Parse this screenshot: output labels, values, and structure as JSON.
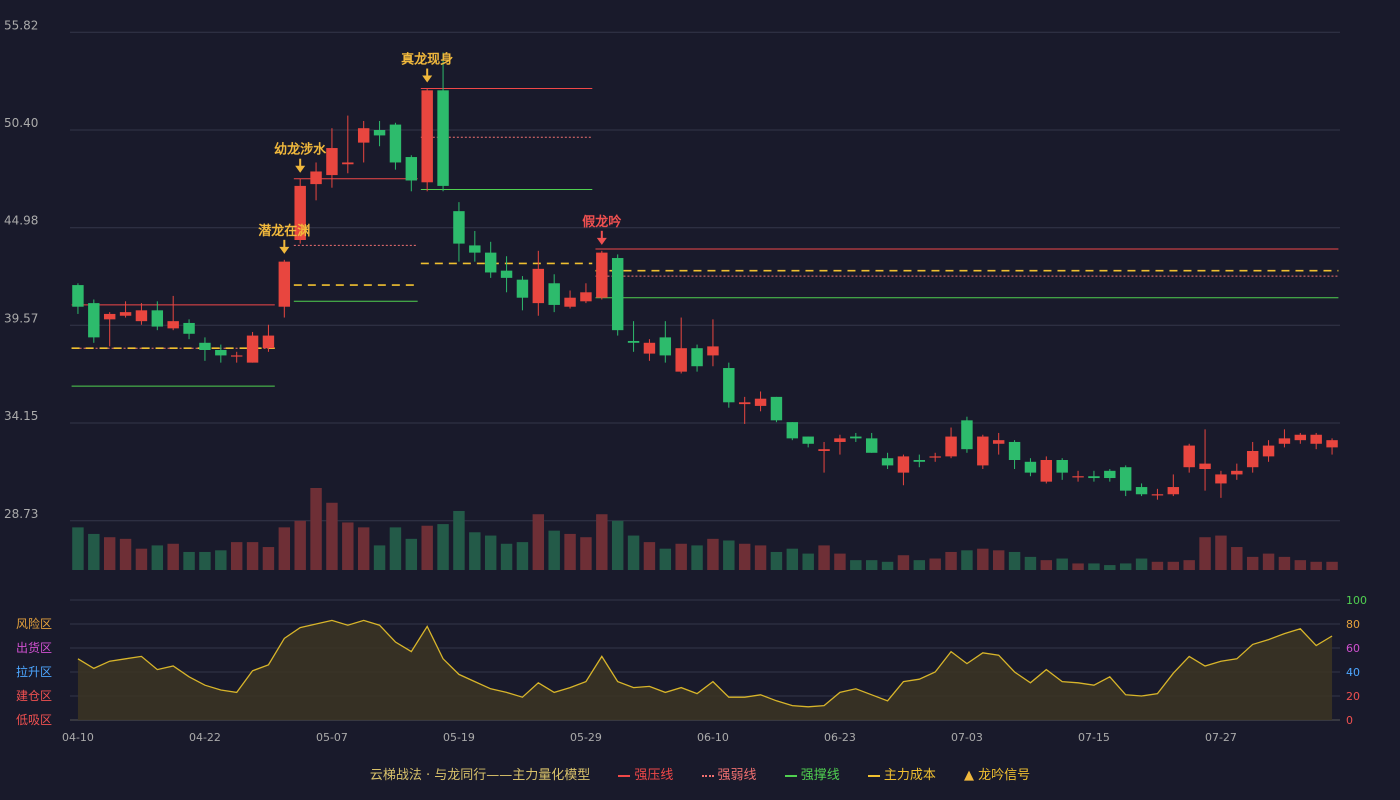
{
  "chart_data": {
    "type": "candlestick",
    "price_axis": {
      "ticks": [
        28.73,
        34.15,
        39.57,
        44.98,
        50.4,
        55.82
      ],
      "min": 26.0,
      "max": 56.5
    },
    "x_labels": [
      {
        "index": 0,
        "label": "04-10"
      },
      {
        "index": 8,
        "label": "04-22"
      },
      {
        "index": 16,
        "label": "05-07"
      },
      {
        "index": 24,
        "label": "05-19"
      },
      {
        "index": 32,
        "label": "05-29"
      },
      {
        "index": 40,
        "label": "06-10"
      },
      {
        "index": 48,
        "label": "06-23"
      },
      {
        "index": 56,
        "label": "07-03"
      },
      {
        "index": 64,
        "label": "07-15"
      },
      {
        "index": 72,
        "label": "07-27"
      }
    ],
    "candles": [
      [
        41.8,
        40.6,
        41.9,
        40.2
      ],
      [
        40.8,
        38.9,
        41.0,
        38.6
      ],
      [
        39.9,
        40.2,
        40.3,
        38.4
      ],
      [
        40.1,
        40.3,
        40.9,
        40.0
      ],
      [
        39.8,
        40.4,
        40.8,
        39.6
      ],
      [
        40.4,
        39.5,
        40.9,
        39.3
      ],
      [
        39.4,
        39.8,
        41.2,
        39.3
      ],
      [
        39.7,
        39.1,
        39.9,
        38.8
      ],
      [
        38.6,
        38.2,
        38.9,
        37.6
      ],
      [
        38.2,
        37.9,
        38.5,
        37.5
      ],
      [
        37.9,
        37.9,
        38.1,
        37.5
      ],
      [
        37.5,
        39.0,
        39.2,
        37.5
      ],
      [
        38.3,
        39.0,
        39.6,
        38.1
      ],
      [
        40.6,
        43.1,
        43.2,
        40.0
      ],
      [
        44.3,
        47.3,
        47.7,
        44.1
      ],
      [
        47.4,
        48.1,
        48.6,
        46.5
      ],
      [
        47.9,
        49.4,
        50.5,
        47.2
      ],
      [
        48.5,
        48.6,
        51.2,
        48.0
      ],
      [
        49.7,
        50.5,
        50.9,
        48.6
      ],
      [
        50.4,
        50.1,
        50.9,
        49.5
      ],
      [
        50.7,
        48.6,
        50.8,
        48.2
      ],
      [
        48.9,
        47.6,
        49.0,
        47.0
      ],
      [
        47.5,
        52.6,
        52.7,
        47.0
      ],
      [
        52.6,
        47.3,
        54.7,
        47.0
      ],
      [
        45.9,
        44.1,
        46.4,
        43.1
      ],
      [
        44.0,
        43.6,
        44.8,
        43.1
      ],
      [
        43.6,
        42.5,
        44.2,
        42.2
      ],
      [
        42.6,
        42.2,
        43.4,
        41.4
      ],
      [
        42.1,
        41.1,
        42.3,
        40.4
      ],
      [
        40.8,
        42.7,
        43.7,
        40.1
      ],
      [
        41.9,
        40.7,
        42.4,
        40.3
      ],
      [
        40.6,
        41.1,
        41.5,
        40.5
      ],
      [
        40.9,
        41.4,
        41.9,
        40.8
      ],
      [
        41.1,
        43.6,
        43.7,
        41.0
      ],
      [
        43.3,
        39.3,
        43.5,
        39.0
      ],
      [
        38.7,
        38.6,
        39.8,
        38.1
      ],
      [
        38.0,
        38.6,
        38.8,
        37.6
      ],
      [
        38.9,
        37.9,
        39.8,
        37.5
      ],
      [
        37.0,
        38.3,
        40.0,
        36.9
      ],
      [
        38.3,
        37.3,
        38.5,
        37.0
      ],
      [
        37.9,
        38.4,
        39.9,
        37.3
      ],
      [
        37.2,
        35.3,
        37.5,
        35.0
      ],
      [
        35.2,
        35.3,
        35.6,
        34.1
      ],
      [
        35.1,
        35.5,
        35.9,
        34.8
      ],
      [
        35.6,
        34.3,
        35.6,
        34.2
      ],
      [
        34.2,
        33.3,
        34.2,
        33.2
      ],
      [
        33.4,
        33.0,
        33.4,
        32.8
      ],
      [
        32.6,
        32.7,
        33.1,
        31.4
      ],
      [
        33.1,
        33.3,
        33.5,
        32.4
      ],
      [
        33.4,
        33.3,
        33.6,
        33.1
      ],
      [
        33.3,
        32.5,
        33.6,
        32.5
      ],
      [
        32.2,
        31.8,
        32.5,
        31.6
      ],
      [
        31.4,
        32.3,
        32.4,
        30.7
      ],
      [
        32.1,
        32.0,
        32.4,
        31.7
      ],
      [
        32.3,
        32.3,
        32.5,
        32.0
      ],
      [
        32.3,
        33.4,
        33.9,
        32.2
      ],
      [
        34.3,
        32.7,
        34.5,
        32.5
      ],
      [
        31.8,
        33.4,
        33.5,
        31.6
      ],
      [
        33.0,
        33.2,
        33.6,
        32.4
      ],
      [
        33.1,
        32.1,
        33.2,
        31.6
      ],
      [
        32.0,
        31.4,
        32.2,
        31.2
      ],
      [
        30.9,
        32.1,
        32.3,
        30.8
      ],
      [
        32.1,
        31.4,
        32.2,
        31.0
      ],
      [
        31.2,
        31.2,
        31.5,
        30.9
      ],
      [
        31.2,
        31.1,
        31.5,
        30.9
      ],
      [
        31.5,
        31.1,
        31.6,
        30.9
      ],
      [
        31.7,
        30.4,
        31.8,
        30.1
      ],
      [
        30.6,
        30.2,
        30.8,
        30.1
      ],
      [
        30.2,
        30.2,
        30.5,
        29.9
      ],
      [
        30.2,
        30.6,
        31.3,
        30.1
      ],
      [
        31.7,
        32.9,
        33.0,
        31.4
      ],
      [
        31.6,
        31.9,
        33.8,
        30.4
      ],
      [
        30.8,
        31.3,
        31.5,
        30.0
      ],
      [
        31.3,
        31.5,
        31.9,
        31.0
      ],
      [
        31.7,
        32.6,
        33.1,
        31.4
      ],
      [
        32.3,
        32.9,
        33.2,
        32.0
      ],
      [
        33.0,
        33.3,
        33.8,
        32.8
      ],
      [
        33.2,
        33.5,
        33.6,
        33.0
      ],
      [
        33.0,
        33.5,
        33.6,
        32.7
      ],
      [
        32.8,
        33.2,
        33.3,
        32.4
      ]
    ],
    "volume": [
      26,
      22,
      20,
      19,
      13,
      15,
      16,
      11,
      11,
      12,
      17,
      17,
      14,
      26,
      30,
      50,
      41,
      29,
      26,
      15,
      26,
      19,
      27,
      28,
      36,
      23,
      21,
      16,
      17,
      34,
      24,
      22,
      20,
      34,
      30,
      21,
      17,
      13,
      16,
      15,
      19,
      18,
      16,
      15,
      11,
      13,
      10,
      15,
      10,
      6,
      6,
      5,
      9,
      6,
      7,
      11,
      12,
      13,
      12,
      11,
      8,
      6,
      7,
      4,
      4,
      3,
      4,
      7,
      5,
      5,
      6,
      20,
      21,
      14,
      8,
      10,
      8,
      6,
      5,
      5
    ],
    "volume_max": 50,
    "oscillator": {
      "zones": [
        "风险区",
        "出货区",
        "拉升区",
        "建仓区",
        "低吸区"
      ],
      "right_ticks": [
        "100",
        "80",
        "60",
        "40",
        "20",
        "0"
      ],
      "values": [
        51,
        43,
        49,
        51,
        53,
        42,
        45,
        36,
        29,
        25,
        23,
        41,
        46,
        68,
        77,
        80,
        83,
        79,
        83,
        79,
        65,
        57,
        78,
        51,
        38,
        32,
        26,
        23,
        19,
        31,
        23,
        27,
        32,
        53,
        32,
        27,
        28,
        23,
        27,
        22,
        32,
        19,
        19,
        21,
        16,
        12,
        11,
        12,
        23,
        26,
        21,
        16,
        32,
        34,
        40,
        57,
        47,
        56,
        54,
        40,
        31,
        42,
        32,
        31,
        29,
        36,
        21,
        20,
        22,
        39,
        53,
        45,
        49,
        51,
        63,
        67,
        72,
        76,
        62,
        70
      ]
    },
    "levels": [
      {
        "type": "strong_resist",
        "start": 0,
        "end": 12,
        "value": 40.7
      },
      {
        "type": "weak_resist",
        "start": 0,
        "end": 12,
        "value": 38.3
      },
      {
        "type": "support",
        "start": 0,
        "end": 12,
        "value": 36.2
      },
      {
        "type": "cost",
        "start": 0,
        "end": 12,
        "value": 38.3
      },
      {
        "type": "strong_resist",
        "start": 14,
        "end": 21,
        "value": 47.7
      },
      {
        "type": "weak_resist",
        "start": 14,
        "end": 21,
        "value": 44.0
      },
      {
        "type": "support",
        "start": 14,
        "end": 21,
        "value": 40.9
      },
      {
        "type": "cost",
        "start": 14,
        "end": 21,
        "value": 41.8
      },
      {
        "type": "strong_resist",
        "start": 22,
        "end": 32,
        "value": 52.7
      },
      {
        "type": "weak_resist",
        "start": 22,
        "end": 32,
        "value": 50.0
      },
      {
        "type": "support",
        "start": 22,
        "end": 32,
        "value": 47.1
      },
      {
        "type": "cost",
        "start": 22,
        "end": 32,
        "value": 43.0
      },
      {
        "type": "strong_resist",
        "start": 33,
        "end": 79,
        "value": 43.8
      },
      {
        "type": "weak_resist",
        "start": 33,
        "end": 79,
        "value": 42.3
      },
      {
        "type": "support",
        "start": 33,
        "end": 79,
        "value": 41.1
      },
      {
        "type": "cost",
        "start": 33,
        "end": 79,
        "value": 42.6
      }
    ],
    "signals": [
      {
        "index": 13,
        "label": "潜龙在渊",
        "color": "#f0b83c"
      },
      {
        "index": 14,
        "label": "幼龙涉水",
        "color": "#f0b83c"
      },
      {
        "index": 22,
        "label": "真龙现身",
        "color": "#f0b83c"
      },
      {
        "index": 33,
        "label": "假龙吟",
        "color": "#f05050"
      }
    ]
  },
  "legend": {
    "title": "云梯战法 · 与龙同行——主力量化模型",
    "items": [
      {
        "label": "强压线",
        "color": "#f04848",
        "style": "solid"
      },
      {
        "label": "强弱线",
        "color": "#f07070",
        "style": "dotted"
      },
      {
        "label": "强撑线",
        "color": "#50d050",
        "style": "solid"
      },
      {
        "label": "主力成本",
        "color": "#f0c030",
        "style": "dashed"
      },
      {
        "label": "龙吟信号",
        "color": "#f0b83c",
        "style": "triangle"
      }
    ]
  },
  "colors": {
    "up": "#e8463f",
    "down": "#2dbb6c",
    "grid": "#34364a",
    "axis_text": "#aaaaaa"
  }
}
